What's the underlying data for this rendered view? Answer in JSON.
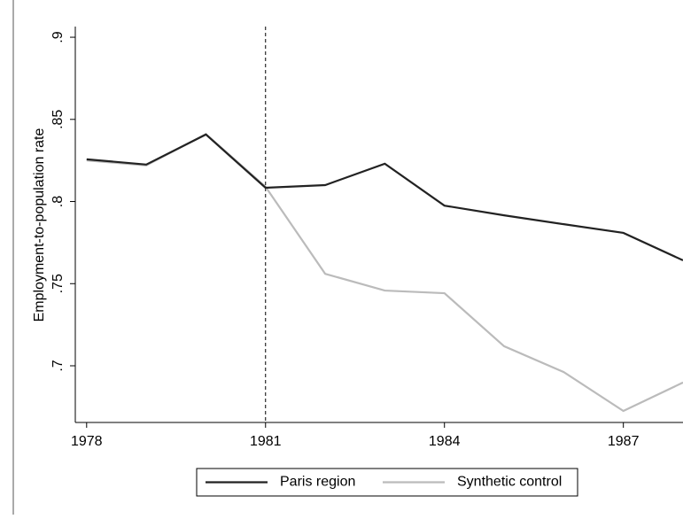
{
  "chart_data": {
    "type": "line",
    "y_label": "Employment-to-population rate",
    "x": [
      1978,
      1979,
      1980,
      1981,
      1982,
      1983,
      1984,
      1985,
      1986,
      1987,
      1988
    ],
    "series": [
      {
        "name": "Paris region",
        "color": "#222222",
        "values": [
          0.8257,
          0.8225,
          0.8408,
          0.8084,
          0.81,
          0.823,
          0.7975,
          0.7916,
          0.7862,
          0.7809,
          0.7642
        ]
      },
      {
        "name": "Synthetic control",
        "color": "#bbbbbb",
        "values": [
          0.825,
          0.822,
          0.841,
          0.809,
          0.756,
          0.7458,
          0.7442,
          0.7119,
          0.6962,
          0.6725,
          0.6898
        ]
      }
    ],
    "xlim": [
      1977.81,
      1988
    ],
    "xticks": [
      1978,
      1981,
      1984,
      1987
    ],
    "ylim": [
      0.6655,
      0.9065
    ],
    "yticks": [
      {
        "value": 0.7,
        "label": ".7"
      },
      {
        "value": 0.75,
        "label": ".75"
      },
      {
        "value": 0.8,
        "label": ".8"
      },
      {
        "value": 0.85,
        "label": ".85"
      },
      {
        "value": 0.9,
        "label": ".9"
      }
    ],
    "vline": 1981,
    "legend": "bottom"
  }
}
